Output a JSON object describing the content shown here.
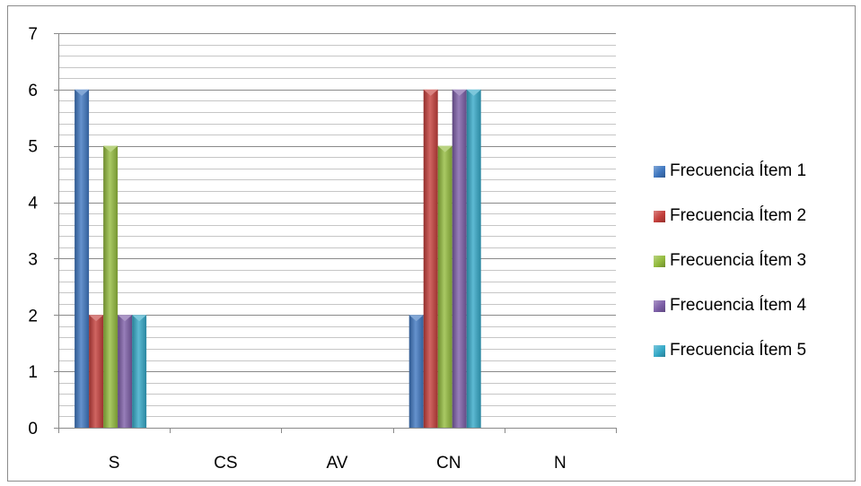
{
  "chart_data": {
    "type": "bar",
    "categories": [
      "S",
      "CS",
      "AV",
      "CN",
      "N"
    ],
    "series": [
      {
        "name": "Frecuencia Ítem 1",
        "values": [
          6,
          0,
          0,
          2,
          0
        ],
        "color": "#3f77c0"
      },
      {
        "name": "Frecuencia Ítem 2",
        "values": [
          2,
          0,
          0,
          6,
          0
        ],
        "color": "#c43e3b"
      },
      {
        "name": "Frecuencia Ítem 3",
        "values": [
          5,
          0,
          0,
          5,
          0
        ],
        "color": "#93bb3d"
      },
      {
        "name": "Frecuencia Ítem 4",
        "values": [
          2,
          0,
          0,
          6,
          0
        ],
        "color": "#7d5ea8"
      },
      {
        "name": "Frecuencia Ítem 5",
        "values": [
          2,
          0,
          0,
          6,
          0
        ],
        "color": "#35a9c8"
      }
    ],
    "ylim": [
      0,
      7
    ],
    "yticks": [
      "0",
      "1",
      "2",
      "3",
      "4",
      "5",
      "6",
      "7"
    ],
    "minor_gridlines_per_unit": 5,
    "grid": true,
    "legend": "right"
  }
}
